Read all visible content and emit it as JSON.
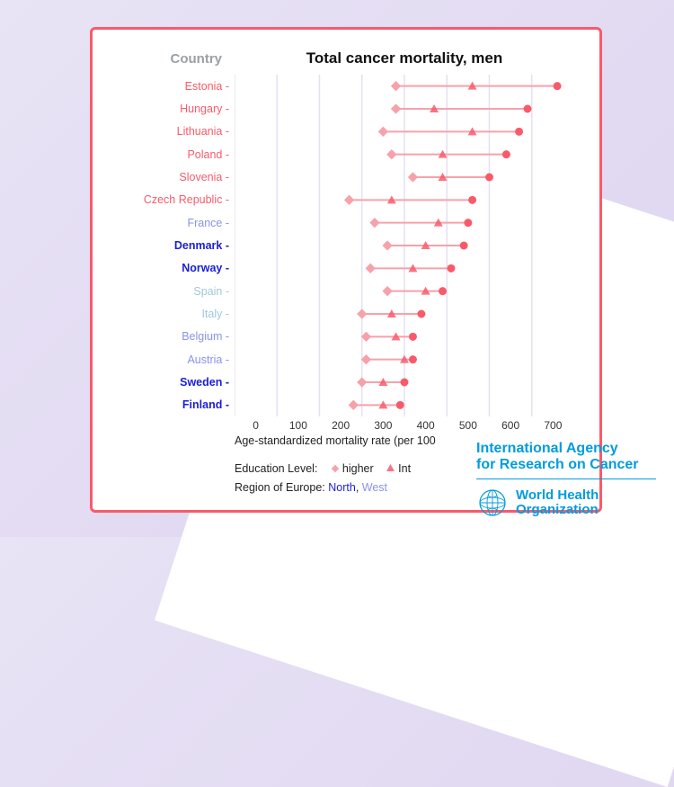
{
  "chart": {
    "type": "dot-range",
    "ylabel": "Country",
    "title": "Total cancer mortality, men",
    "xlabel": "Age-standardized mortality rate (per 100",
    "xmin": 0,
    "xmax": 800,
    "xtick_step": 100,
    "xticks": [
      0,
      100,
      200,
      300,
      400,
      500,
      600,
      700
    ],
    "colors": {
      "segment": "#f7a1ab",
      "diamond": "#f7a1ab",
      "triangle": "#f95a6a",
      "circle": "#f95a6a",
      "grid": "#e4e0f2",
      "border": "#f95a6a",
      "bg": "#ffffff"
    },
    "region_colors": {
      "North": "#1a1fd6",
      "West": "#8a93e8",
      "South": "#9fc9d9",
      "East": "#f95a6a"
    },
    "rows": [
      {
        "country": "Estonia",
        "region": "East",
        "higher": 380,
        "inter": 560,
        "lower": 760
      },
      {
        "country": "Hungary",
        "region": "East",
        "higher": 380,
        "inter": 470,
        "lower": 690
      },
      {
        "country": "Lithuania",
        "region": "East",
        "higher": 350,
        "inter": 560,
        "lower": 670
      },
      {
        "country": "Poland",
        "region": "East",
        "higher": 370,
        "inter": 490,
        "lower": 640
      },
      {
        "country": "Slovenia",
        "region": "East",
        "higher": 420,
        "inter": 490,
        "lower": 600
      },
      {
        "country": "Czech Republic",
        "region": "East",
        "higher": 270,
        "inter": 370,
        "lower": 560
      },
      {
        "country": "France",
        "region": "West",
        "higher": 330,
        "inter": 480,
        "lower": 550
      },
      {
        "country": "Denmark",
        "region": "North",
        "higher": 360,
        "inter": 450,
        "lower": 540
      },
      {
        "country": "Norway",
        "region": "North",
        "higher": 320,
        "inter": 420,
        "lower": 510
      },
      {
        "country": "Spain",
        "region": "South",
        "higher": 360,
        "inter": 450,
        "lower": 490
      },
      {
        "country": "Italy",
        "region": "South",
        "higher": 300,
        "inter": 370,
        "lower": 440
      },
      {
        "country": "Belgium",
        "region": "West",
        "higher": 310,
        "inter": 380,
        "lower": 420
      },
      {
        "country": "Austria",
        "region": "West",
        "higher": 310,
        "inter": 400,
        "lower": 420
      },
      {
        "country": "Sweden",
        "region": "North",
        "higher": 300,
        "inter": 350,
        "lower": 400
      },
      {
        "country": "Finland",
        "region": "North",
        "higher": 280,
        "inter": 350,
        "lower": 390
      }
    ],
    "legend": {
      "edu_label": "Education Level:",
      "edu_items": [
        {
          "marker": "diamond",
          "label": "higher"
        },
        {
          "marker": "triangle",
          "label": "Int"
        }
      ],
      "region_label": "Region of Europe:",
      "region_items": [
        "North",
        "West"
      ]
    }
  },
  "logo": {
    "iarc_line1": "International Agency",
    "iarc_line2": "for Research on Cancer",
    "who_line1": "World Health",
    "who_line2": "Organization"
  }
}
